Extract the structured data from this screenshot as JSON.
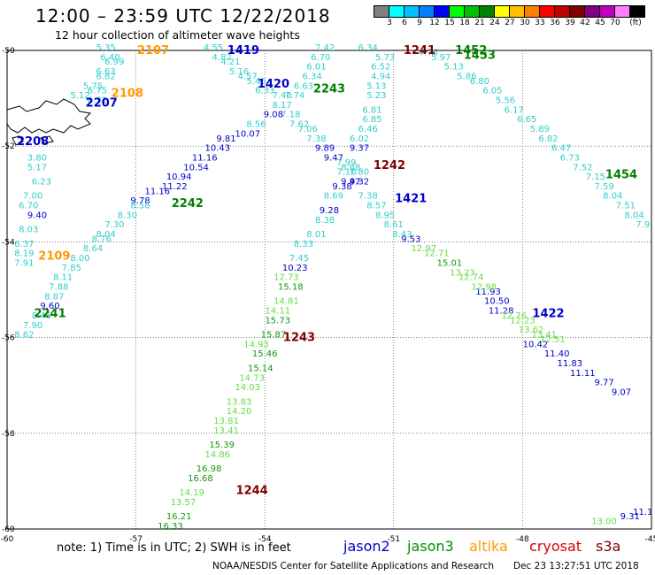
{
  "title": "12:00 – 23:59 UTC 12/22/2018",
  "subtitle": "12 hour collection of altimeter wave heights",
  "color_scale": {
    "colors": [
      "#808080",
      "#00ffff",
      "#00c0ff",
      "#0080ff",
      "#0000ff",
      "#00ff00",
      "#00c000",
      "#008000",
      "#ffff00",
      "#ffc000",
      "#ff8000",
      "#ff0000",
      "#c00000",
      "#800000",
      "#800080",
      "#c000c0",
      "#ff80ff",
      "#000000"
    ],
    "labels": [
      "3",
      "6",
      "9",
      "12",
      "15",
      "18",
      "21",
      "24",
      "27",
      "30",
      "33",
      "36",
      "39",
      "42",
      "45",
      "70",
      "(ft)"
    ]
  },
  "chart_data": {
    "type": "map",
    "xlim": [
      -60,
      -45
    ],
    "ylim": [
      -60,
      -50
    ],
    "x_ticks": [
      "-60",
      "-57",
      "-54",
      "-51",
      "-48",
      "-45"
    ],
    "y_ticks": [
      "-50",
      "-52",
      "-54",
      "-56",
      "-58",
      "-60"
    ],
    "grid": true,
    "satellites": [
      {
        "name": "jason2",
        "color": "#0000cc"
      },
      {
        "name": "jason3",
        "color": "#008000"
      },
      {
        "name": "altika",
        "color": "#ff9900"
      },
      {
        "name": "cryosat",
        "color": "#cc0000"
      },
      {
        "name": "s3a",
        "color": "#800000"
      }
    ],
    "pass_labels": [
      {
        "text": "2107",
        "lon": -56.6,
        "lat": -50.0,
        "sat": "altika"
      },
      {
        "text": "2108",
        "lon": -57.2,
        "lat": -50.9,
        "sat": "altika"
      },
      {
        "text": "2109",
        "lon": -58.9,
        "lat": -54.3,
        "sat": "altika"
      },
      {
        "text": "2207",
        "lon": -57.8,
        "lat": -51.1,
        "sat": "jason2"
      },
      {
        "text": "2208",
        "lon": -59.4,
        "lat": -51.9,
        "sat": "jason2"
      },
      {
        "text": "1419",
        "lon": -54.5,
        "lat": -50.0,
        "sat": "jason2"
      },
      {
        "text": "1420",
        "lon": -53.8,
        "lat": -50.7,
        "sat": "jason2"
      },
      {
        "text": "1421",
        "lon": -50.6,
        "lat": -53.1,
        "sat": "jason2"
      },
      {
        "text": "1422",
        "lon": -47.4,
        "lat": -55.5,
        "sat": "jason2"
      },
      {
        "text": "2242",
        "lon": -55.8,
        "lat": -53.2,
        "sat": "jason3"
      },
      {
        "text": "2241",
        "lon": -59.0,
        "lat": -55.5,
        "sat": "jason3"
      },
      {
        "text": "2243",
        "lon": -52.5,
        "lat": -50.8,
        "sat": "jason3"
      },
      {
        "text": "1452",
        "lon": -49.2,
        "lat": -50.0,
        "sat": "jason3"
      },
      {
        "text": "1453",
        "lon": -49.0,
        "lat": -50.1,
        "sat": "jason3"
      },
      {
        "text": "1454",
        "lon": -45.7,
        "lat": -52.6,
        "sat": "jason3"
      },
      {
        "text": "1241",
        "lon": -50.4,
        "lat": -50.0,
        "sat": "s3a"
      },
      {
        "text": "1242",
        "lon": -51.1,
        "lat": -52.4,
        "sat": "s3a"
      },
      {
        "text": "1243",
        "lon": -53.2,
        "lat": -56.0,
        "sat": "s3a"
      },
      {
        "text": "1244",
        "lon": -54.3,
        "lat": -59.2,
        "sat": "s3a"
      }
    ],
    "observations": [
      {
        "v": "5.35",
        "lon": -57.7,
        "lat": -50.0
      },
      {
        "v": "6.40",
        "lon": -57.6,
        "lat": -50.2
      },
      {
        "v": "6.99",
        "lon": -57.5,
        "lat": -50.3
      },
      {
        "v": "6.63",
        "lon": -57.7,
        "lat": -50.5
      },
      {
        "v": "6.82",
        "lon": -57.7,
        "lat": -50.6
      },
      {
        "v": "5.75",
        "lon": -58.0,
        "lat": -50.8
      },
      {
        "v": "6.75",
        "lon": -57.9,
        "lat": -50.9
      },
      {
        "v": "5.12",
        "lon": -58.3,
        "lat": -51.0
      },
      {
        "v": "6.22",
        "lon": -57.9,
        "lat": -51.1
      },
      {
        "v": "3.80",
        "lon": -59.3,
        "lat": -52.3
      },
      {
        "v": "5.17",
        "lon": -59.3,
        "lat": -52.5
      },
      {
        "v": "6.23",
        "lon": -59.2,
        "lat": -52.8
      },
      {
        "v": "7.00",
        "lon": -59.4,
        "lat": -53.1
      },
      {
        "v": "6.70",
        "lon": -59.5,
        "lat": -53.3
      },
      {
        "v": "9.40",
        "lon": -59.3,
        "lat": -53.5
      },
      {
        "v": "8.03",
        "lon": -59.5,
        "lat": -53.8
      },
      {
        "v": "6.37",
        "lon": -59.6,
        "lat": -54.1
      },
      {
        "v": "8.19",
        "lon": -59.6,
        "lat": -54.3
      },
      {
        "v": "7.91",
        "lon": -59.6,
        "lat": -54.5
      },
      {
        "v": "4.55",
        "lon": -55.2,
        "lat": -50.0
      },
      {
        "v": "4.82",
        "lon": -55.0,
        "lat": -50.2
      },
      {
        "v": "4.21",
        "lon": -54.8,
        "lat": -50.3
      },
      {
        "v": "5.16",
        "lon": -54.6,
        "lat": -50.5
      },
      {
        "v": "4.57",
        "lon": -54.4,
        "lat": -50.6
      },
      {
        "v": "5.46",
        "lon": -54.2,
        "lat": -50.7
      },
      {
        "v": "6.33",
        "lon": -54.0,
        "lat": -50.9
      },
      {
        "v": "7.40",
        "lon": -53.6,
        "lat": -51.0
      },
      {
        "v": "8.17",
        "lon": -53.6,
        "lat": -51.2
      },
      {
        "v": "9.08",
        "lon": -53.8,
        "lat": -51.4
      },
      {
        "v": "8.56",
        "lon": -54.2,
        "lat": -51.6
      },
      {
        "v": "10.07",
        "lon": -54.4,
        "lat": -51.8
      },
      {
        "v": "9.81",
        "lon": -54.9,
        "lat": -51.9
      },
      {
        "v": "10.43",
        "lon": -55.1,
        "lat": -52.1
      },
      {
        "v": "11.16",
        "lon": -55.4,
        "lat": -52.3
      },
      {
        "v": "10.54",
        "lon": -55.6,
        "lat": -52.5
      },
      {
        "v": "10.94",
        "lon": -56.0,
        "lat": -52.7
      },
      {
        "v": "11.22",
        "lon": -56.1,
        "lat": -52.9
      },
      {
        "v": "11.16",
        "lon": -56.5,
        "lat": -53.0
      },
      {
        "v": "9.78",
        "lon": -56.9,
        "lat": -53.2
      },
      {
        "v": "8.58",
        "lon": -56.9,
        "lat": -53.3
      },
      {
        "v": "8.30",
        "lon": -57.2,
        "lat": -53.5
      },
      {
        "v": "7.30",
        "lon": -57.5,
        "lat": -53.7
      },
      {
        "v": "8.04",
        "lon": -57.7,
        "lat": -53.9
      },
      {
        "v": "8.76",
        "lon": -57.8,
        "lat": -54.0
      },
      {
        "v": "8.64",
        "lon": -58.0,
        "lat": -54.2
      },
      {
        "v": "8.00",
        "lon": -58.3,
        "lat": -54.4
      },
      {
        "v": "7.85",
        "lon": -58.5,
        "lat": -54.6
      },
      {
        "v": "8.11",
        "lon": -58.7,
        "lat": -54.8
      },
      {
        "v": "7.88",
        "lon": -58.8,
        "lat": -55.0
      },
      {
        "v": "8.87",
        "lon": -58.9,
        "lat": -55.2
      },
      {
        "v": "9.60",
        "lon": -59.0,
        "lat": -55.4
      },
      {
        "v": "8.46",
        "lon": -59.2,
        "lat": -55.6
      },
      {
        "v": "7.90",
        "lon": -59.4,
        "lat": -55.8
      },
      {
        "v": "8.62",
        "lon": -59.6,
        "lat": -56.0
      },
      {
        "v": "7.42",
        "lon": -52.6,
        "lat": -50.0
      },
      {
        "v": "6.70",
        "lon": -52.7,
        "lat": -50.2
      },
      {
        "v": "6.01",
        "lon": -52.8,
        "lat": -50.4
      },
      {
        "v": "6.34",
        "lon": -52.9,
        "lat": -50.6
      },
      {
        "v": "6.63",
        "lon": -53.1,
        "lat": -50.8
      },
      {
        "v": "7.74",
        "lon": -53.3,
        "lat": -51.0
      },
      {
        "v": "7.18",
        "lon": -53.4,
        "lat": -51.4
      },
      {
        "v": "7.62",
        "lon": -53.2,
        "lat": -51.6
      },
      {
        "v": "7.06",
        "lon": -53.0,
        "lat": -51.7
      },
      {
        "v": "7.38",
        "lon": -52.8,
        "lat": -51.9
      },
      {
        "v": "9.89",
        "lon": -52.6,
        "lat": -52.1
      },
      {
        "v": "9.47",
        "lon": -52.4,
        "lat": -52.3
      },
      {
        "v": "8.88",
        "lon": -52.0,
        "lat": -52.5
      },
      {
        "v": "7.80",
        "lon": -51.8,
        "lat": -52.6
      },
      {
        "v": "9.32",
        "lon": -51.8,
        "lat": -52.8
      },
      {
        "v": "7.38",
        "lon": -51.6,
        "lat": -53.1
      },
      {
        "v": "8.57",
        "lon": -51.4,
        "lat": -53.3
      },
      {
        "v": "8.95",
        "lon": -51.2,
        "lat": -53.5
      },
      {
        "v": "8.61",
        "lon": -51.0,
        "lat": -53.7
      },
      {
        "v": "8.43",
        "lon": -50.8,
        "lat": -53.9
      },
      {
        "v": "9.53",
        "lon": -50.6,
        "lat": -54.0
      },
      {
        "v": "10.42",
        "lon": -47.7,
        "lat": -56.2
      },
      {
        "v": "11.40",
        "lon": -47.2,
        "lat": -56.4
      },
      {
        "v": "11.83",
        "lon": -46.9,
        "lat": -56.6
      },
      {
        "v": "11.11",
        "lon": -46.6,
        "lat": -56.8
      },
      {
        "v": "9.77",
        "lon": -46.1,
        "lat": -57.0
      },
      {
        "v": "9.07",
        "lon": -45.7,
        "lat": -57.2
      },
      {
        "v": "11.93",
        "lon": -48.8,
        "lat": -55.1
      },
      {
        "v": "10.50",
        "lon": -48.6,
        "lat": -55.3
      },
      {
        "v": "11.28",
        "lon": -48.5,
        "lat": -55.5
      },
      {
        "v": "6.34",
        "lon": -51.6,
        "lat": -50.0
      },
      {
        "v": "5.73",
        "lon": -51.2,
        "lat": -50.2
      },
      {
        "v": "6.52",
        "lon": -51.3,
        "lat": -50.4
      },
      {
        "v": "4.94",
        "lon": -51.3,
        "lat": -50.6
      },
      {
        "v": "5.13",
        "lon": -51.4,
        "lat": -50.8
      },
      {
        "v": "5.23",
        "lon": -51.4,
        "lat": -51.0
      },
      {
        "v": "6.81",
        "lon": -51.5,
        "lat": -51.3
      },
      {
        "v": "6.85",
        "lon": -51.5,
        "lat": -51.5
      },
      {
        "v": "6.46",
        "lon": -51.6,
        "lat": -51.7
      },
      {
        "v": "6.02",
        "lon": -51.8,
        "lat": -51.9
      },
      {
        "v": "9.37",
        "lon": -51.8,
        "lat": -52.1
      },
      {
        "v": "7.99",
        "lon": -52.1,
        "lat": -52.4
      },
      {
        "v": "7.10",
        "lon": -52.1,
        "lat": -52.6
      },
      {
        "v": "9.47",
        "lon": -52.0,
        "lat": -52.8
      },
      {
        "v": "9.38",
        "lon": -52.2,
        "lat": -52.9
      },
      {
        "v": "8.69",
        "lon": -52.4,
        "lat": -53.1
      },
      {
        "v": "9.28",
        "lon": -52.5,
        "lat": -53.4
      },
      {
        "v": "8.38",
        "lon": -52.6,
        "lat": -53.6
      },
      {
        "v": "8.01",
        "lon": -52.8,
        "lat": -53.9
      },
      {
        "v": "8.33",
        "lon": -53.1,
        "lat": -54.1
      },
      {
        "v": "7.45",
        "lon": -53.2,
        "lat": -54.4
      },
      {
        "v": "10.23",
        "lon": -53.3,
        "lat": -54.6
      },
      {
        "v": "12.73",
        "lon": -53.5,
        "lat": -54.8
      },
      {
        "v": "15.18",
        "lon": -53.4,
        "lat": -55.0
      },
      {
        "v": "14.81",
        "lon": -53.5,
        "lat": -55.3
      },
      {
        "v": "14.11",
        "lon": -53.7,
        "lat": -55.5
      },
      {
        "v": "15.73",
        "lon": -53.7,
        "lat": -55.7
      },
      {
        "v": "15.87",
        "lon": -53.8,
        "lat": -56.0
      },
      {
        "v": "14.93",
        "lon": -54.2,
        "lat": -56.2
      },
      {
        "v": "15.46",
        "lon": -54.0,
        "lat": -56.4
      },
      {
        "v": "15.14",
        "lon": -54.1,
        "lat": -56.7
      },
      {
        "v": "14.73",
        "lon": -54.3,
        "lat": -56.9
      },
      {
        "v": "14.03",
        "lon": -54.4,
        "lat": -57.1
      },
      {
        "v": "13.83",
        "lon": -54.6,
        "lat": -57.4
      },
      {
        "v": "14.20",
        "lon": -54.6,
        "lat": -57.6
      },
      {
        "v": "13.81",
        "lon": -54.9,
        "lat": -57.8
      },
      {
        "v": "13.41",
        "lon": -54.9,
        "lat": -58.0
      },
      {
        "v": "15.39",
        "lon": -55.0,
        "lat": -58.3
      },
      {
        "v": "14.86",
        "lon": -55.1,
        "lat": -58.5
      },
      {
        "v": "16.98",
        "lon": -55.3,
        "lat": -58.8
      },
      {
        "v": "16.68",
        "lon": -55.5,
        "lat": -59.0
      },
      {
        "v": "14.19",
        "lon": -55.7,
        "lat": -59.3
      },
      {
        "v": "13.57",
        "lon": -55.9,
        "lat": -59.5
      },
      {
        "v": "16.21",
        "lon": -56.0,
        "lat": -59.8
      },
      {
        "v": "16.33",
        "lon": -56.2,
        "lat": -60.0
      },
      {
        "v": "12.97",
        "lon": -50.3,
        "lat": -54.2
      },
      {
        "v": "12.71",
        "lon": -50.0,
        "lat": -54.3
      },
      {
        "v": "15.01",
        "lon": -49.7,
        "lat": -54.5
      },
      {
        "v": "13.23",
        "lon": -49.4,
        "lat": -54.7
      },
      {
        "v": "12.74",
        "lon": -49.2,
        "lat": -54.8
      },
      {
        "v": "12.98",
        "lon": -48.9,
        "lat": -55.0
      },
      {
        "v": "12.76",
        "lon": -48.2,
        "lat": -55.6
      },
      {
        "v": "12.23",
        "lon": -48.0,
        "lat": -55.7
      },
      {
        "v": "13.62",
        "lon": -47.8,
        "lat": -55.9
      },
      {
        "v": "13.41",
        "lon": -47.5,
        "lat": -56.0
      },
      {
        "v": "12.51",
        "lon": -47.3,
        "lat": -56.1
      },
      {
        "v": "4.76",
        "lon": -50.2,
        "lat": -50.1
      },
      {
        "v": "5.97",
        "lon": -49.9,
        "lat": -50.2
      },
      {
        "v": "5.13",
        "lon": -49.6,
        "lat": -50.4
      },
      {
        "v": "5.86",
        "lon": -49.3,
        "lat": -50.6
      },
      {
        "v": "6.80",
        "lon": -49.0,
        "lat": -50.7
      },
      {
        "v": "6.05",
        "lon": -48.7,
        "lat": -50.9
      },
      {
        "v": "5.56",
        "lon": -48.4,
        "lat": -51.1
      },
      {
        "v": "6.17",
        "lon": -48.2,
        "lat": -51.3
      },
      {
        "v": "6.65",
        "lon": -47.9,
        "lat": -51.5
      },
      {
        "v": "5.89",
        "lon": -47.6,
        "lat": -51.7
      },
      {
        "v": "6.82",
        "lon": -47.4,
        "lat": -51.9
      },
      {
        "v": "6.47",
        "lon": -47.1,
        "lat": -52.1
      },
      {
        "v": "6.73",
        "lon": -46.9,
        "lat": -52.3
      },
      {
        "v": "7.52",
        "lon": -46.6,
        "lat": -52.5
      },
      {
        "v": "7.15",
        "lon": -46.3,
        "lat": -52.7
      },
      {
        "v": "7.59",
        "lon": -46.1,
        "lat": -52.9
      },
      {
        "v": "8.04",
        "lon": -45.9,
        "lat": -53.1
      },
      {
        "v": "7.51",
        "lon": -45.6,
        "lat": -53.3
      },
      {
        "v": "8.04",
        "lon": -45.4,
        "lat": -53.5
      },
      {
        "v": "7.9",
        "lon": -45.2,
        "lat": -53.7
      },
      {
        "v": "13.00",
        "lon": -46.1,
        "lat": -59.9
      },
      {
        "v": "9.31",
        "lon": -45.5,
        "lat": -59.8
      },
      {
        "v": "11.1",
        "lon": -45.2,
        "lat": -59.7
      }
    ]
  },
  "note": "note: 1) Time is in UTC; 2) SWH is in feet",
  "legend": [
    "jason2",
    "jason3",
    "altika",
    "cryosat",
    "s3a"
  ],
  "footer": "NOAA/NESDIS Center for Satellite Applications and Research",
  "footer_date": "Dec 23 13:27:51 UTC 2018"
}
